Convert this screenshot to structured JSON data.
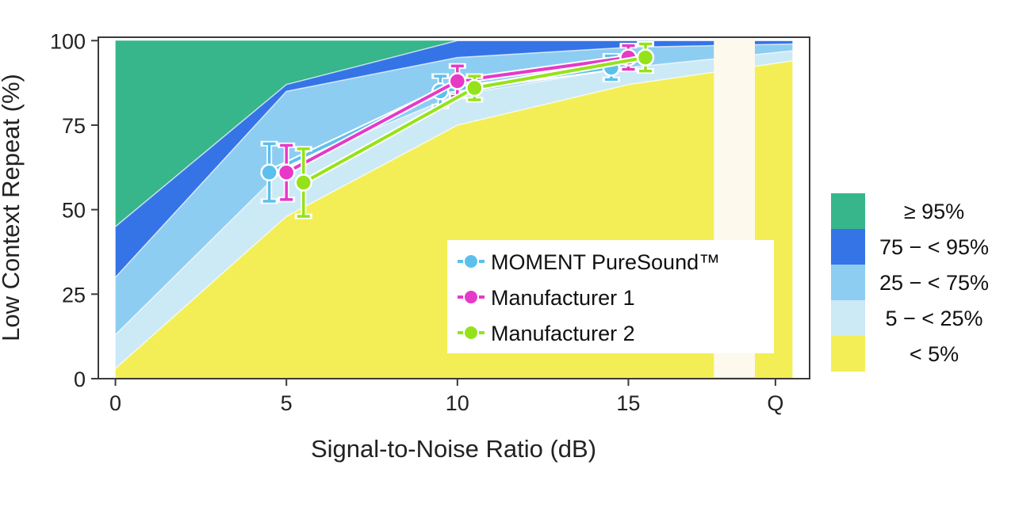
{
  "chart_data": {
    "type": "area",
    "xlabel": "Signal-to-Noise Ratio (dB)",
    "ylabel": "Low Context Repeat (%)",
    "x_ticks": [
      {
        "value": 0,
        "label": "0"
      },
      {
        "value": 5,
        "label": "5"
      },
      {
        "value": 10,
        "label": "10"
      },
      {
        "value": 15,
        "label": "15"
      },
      {
        "value": 19.3,
        "label": "Q"
      }
    ],
    "y_ticks": [
      {
        "value": 0,
        "label": "0"
      },
      {
        "value": 25,
        "label": "25"
      },
      {
        "value": 50,
        "label": "50"
      },
      {
        "value": 75,
        "label": "75"
      },
      {
        "value": 100,
        "label": "100"
      }
    ],
    "xlim": [
      -0.5,
      20.3
    ],
    "ylim": [
      0,
      101
    ],
    "bands_x": [
      0,
      5,
      10,
      15,
      19.8
    ],
    "bands": [
      {
        "label": "< 5%",
        "color": "#f3ee55",
        "upper": [
          3,
          48,
          75,
          87,
          94
        ]
      },
      {
        "label": "5 − < 25%",
        "color": "#cce9f6",
        "upper": [
          13,
          63,
          84,
          92,
          97
        ]
      },
      {
        "label": "25 − < 75%",
        "color": "#8ecdf2",
        "upper": [
          30,
          85,
          95,
          98,
          99
        ]
      },
      {
        "label": "75 − < 95%",
        "color": "#3574e6",
        "upper": [
          45,
          87,
          100,
          100,
          100
        ]
      },
      {
        "label": "≥ 95%",
        "color": "#36b68a",
        "upper": [
          100,
          100,
          100,
          100,
          100
        ]
      }
    ],
    "quiet_gap": [
      17.5,
      18.7
    ],
    "series": [
      {
        "name": "MOMENT PureSound™",
        "color": "#5cc0ec",
        "points": [
          {
            "x": 4.5,
            "y": 61,
            "err": 8.5
          },
          {
            "x": 9.5,
            "y": 85,
            "err": 4.5
          },
          {
            "x": 14.5,
            "y": 92,
            "err": 3.5
          }
        ]
      },
      {
        "name": "Manufacturer 1",
        "color": "#e639c8",
        "points": [
          {
            "x": 5.0,
            "y": 61,
            "err": 8.0
          },
          {
            "x": 10.0,
            "y": 88,
            "err": 4.5
          },
          {
            "x": 15.0,
            "y": 95,
            "err": 3.5
          }
        ]
      },
      {
        "name": "Manufacturer 2",
        "color": "#94e31a",
        "points": [
          {
            "x": 5.5,
            "y": 58,
            "err": 10.0
          },
          {
            "x": 10.5,
            "y": 86,
            "err": 3.5
          },
          {
            "x": 15.5,
            "y": 95,
            "err": 4.0
          }
        ]
      }
    ],
    "legend_placement": "bottom-right inside plot",
    "band_legend_placement": "right of plot",
    "grid": false
  }
}
